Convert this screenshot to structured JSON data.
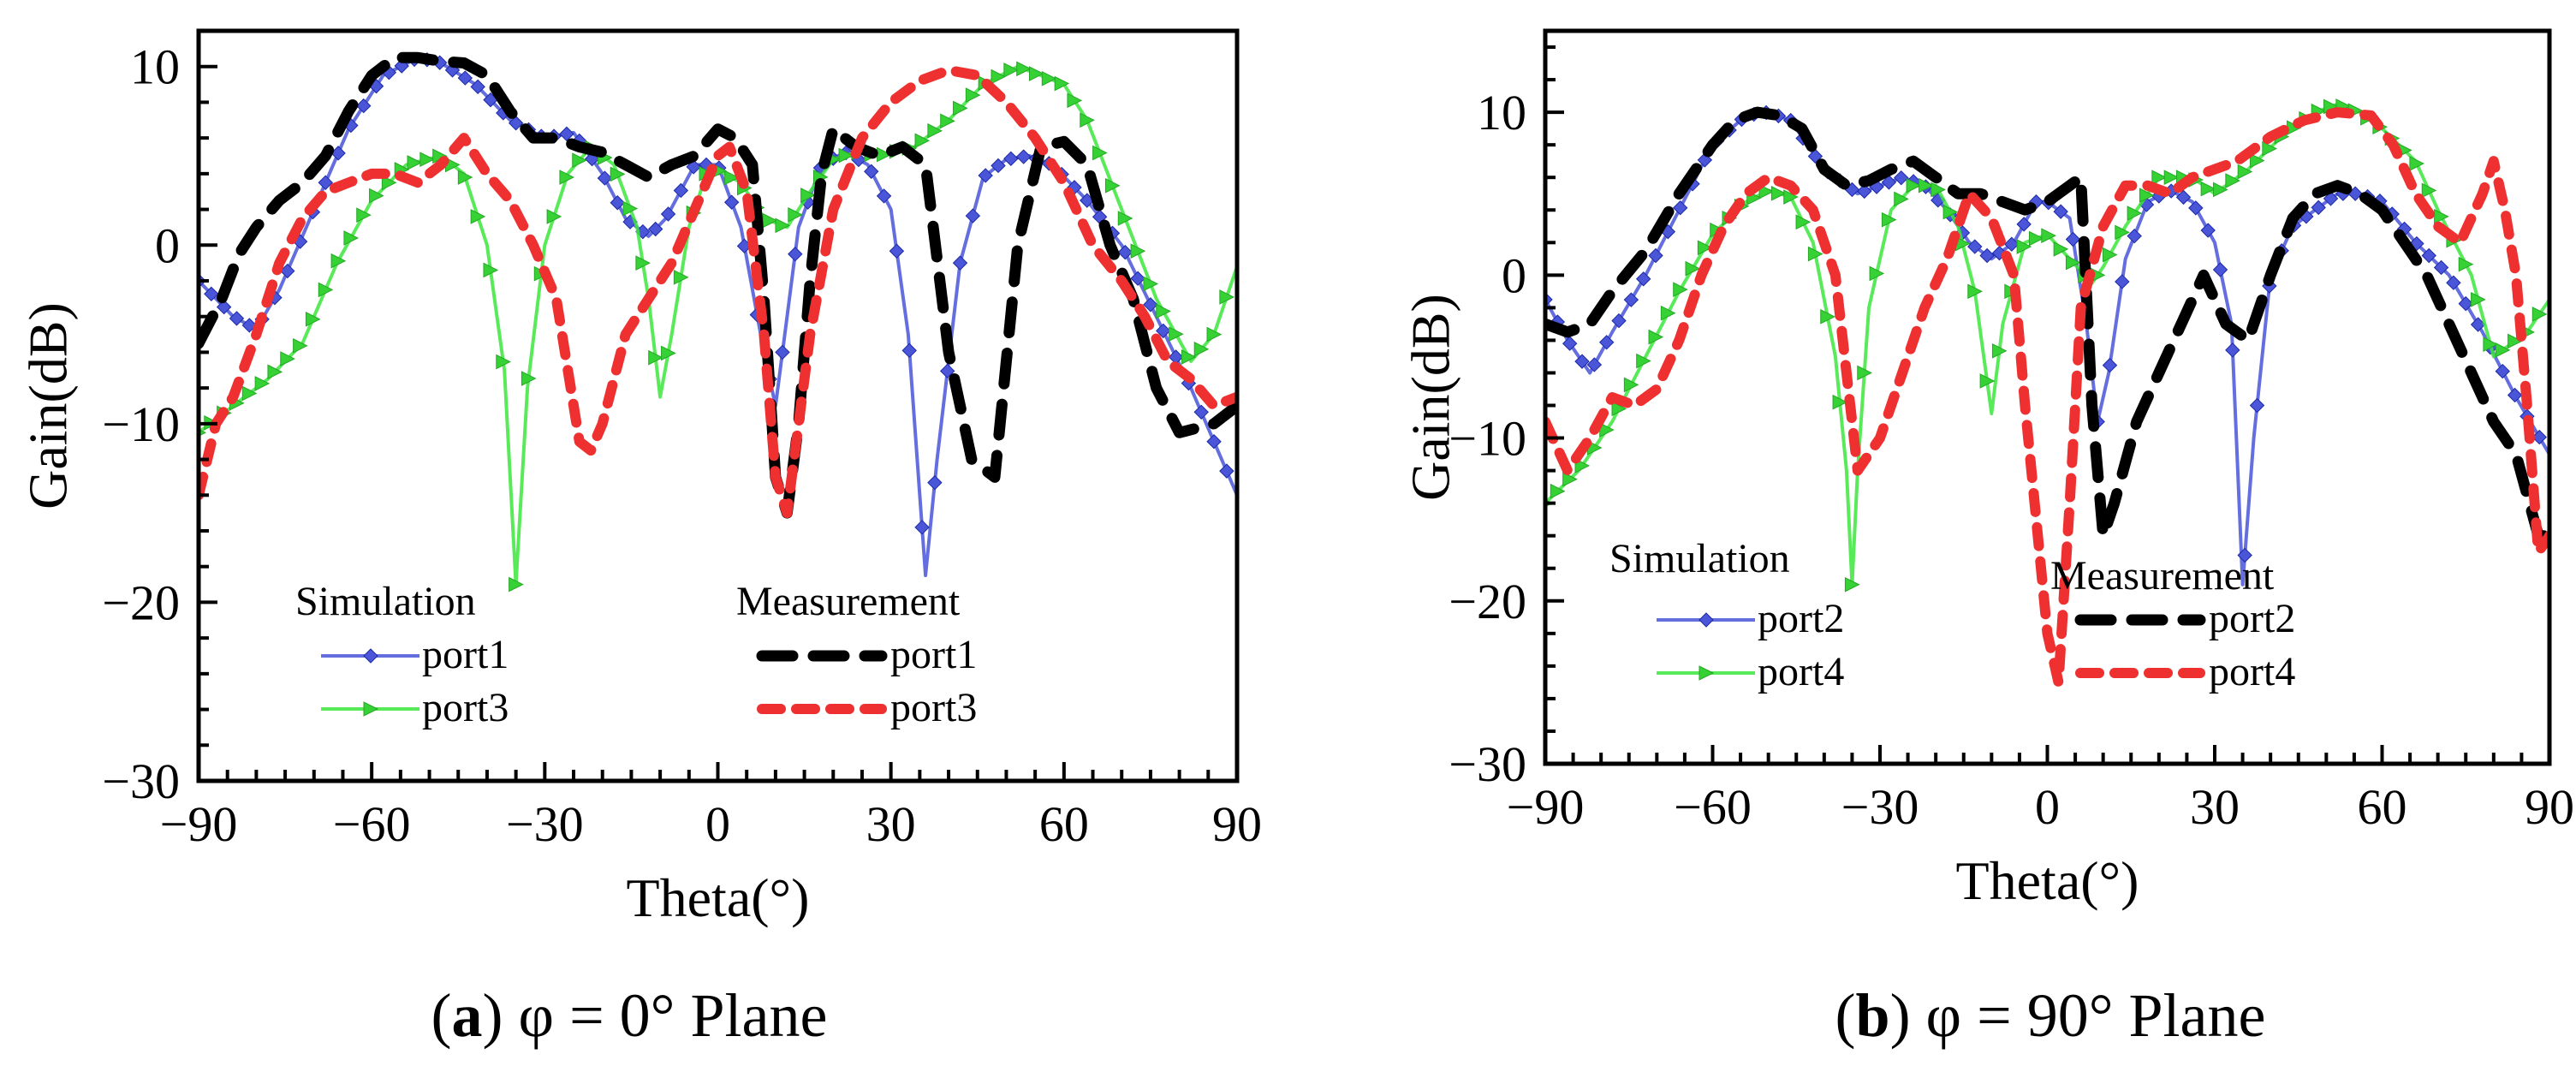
{
  "chart_data": [
    {
      "id": "a",
      "type": "line",
      "caption_letter": "a",
      "caption_rest": "φ = 0° Plane",
      "xlabel": "Theta(°)",
      "ylabel": "Gain(dB)",
      "xlim": [
        -90,
        90
      ],
      "ylim": [
        -30,
        12
      ],
      "xticks": [
        -90,
        -60,
        -30,
        0,
        30,
        60,
        90
      ],
      "xtick_labels": [
        "−90",
        "−60",
        "−30",
        "0",
        "30",
        "60",
        "90"
      ],
      "yticks": [
        10,
        0,
        -10,
        -20,
        -30
      ],
      "ytick_labels": [
        "10",
        "0",
        "−10",
        "−20",
        "−30"
      ],
      "legend": {
        "sim_title": "Simulation",
        "meas_title": "Measurement",
        "sim_items": [
          "port1",
          "port3"
        ],
        "meas_items": [
          "port1",
          "port3"
        ]
      },
      "series": [
        {
          "name": "Simulation port1",
          "color": "#4a55d8",
          "style": "sim-diamond",
          "x": [
            -90,
            -84,
            -80,
            -76,
            -70,
            -64,
            -58,
            -52,
            -48,
            -42,
            -36,
            -30,
            -25,
            -20,
            -16,
            -12,
            -9,
            -4,
            0,
            4,
            8,
            10,
            12,
            14,
            18,
            22,
            26,
            30,
            33,
            36,
            38,
            42,
            46,
            50,
            54,
            58,
            64,
            70,
            76,
            82,
            86,
            90
          ],
          "y": [
            -2,
            -4,
            -4.7,
            -2.5,
            2,
            6.5,
            9.5,
            10.5,
            10.2,
            9,
            7,
            6,
            6.3,
            4,
            1.5,
            0.5,
            1.5,
            4.5,
            4.5,
            1,
            -6,
            -9,
            -4,
            1,
            4.5,
            5.2,
            4.5,
            2,
            -5,
            -18.5,
            -12,
            -1,
            3.8,
            4.8,
            5,
            4.5,
            2.5,
            0,
            -4,
            -8,
            -11,
            -14
          ]
        },
        {
          "name": "Simulation port3",
          "color": "#3ce63c",
          "style": "sim-triangle",
          "x": [
            -90,
            -84,
            -78,
            -72,
            -66,
            -60,
            -54,
            -48,
            -44,
            -40,
            -37,
            -35,
            -33,
            -30,
            -26,
            -22,
            -18,
            -14,
            -12,
            -10,
            -8,
            -5,
            -2,
            0,
            4,
            8,
            12,
            16,
            20,
            24,
            28,
            34,
            40,
            46,
            52,
            56,
            60,
            64,
            70,
            76,
            82,
            86,
            90
          ],
          "y": [
            -10.5,
            -9,
            -7.5,
            -5.5,
            -1,
            2.5,
            4.5,
            5,
            4,
            0,
            -7,
            -19,
            -8,
            0,
            4,
            5.5,
            4.5,
            1,
            -3,
            -8.5,
            -5,
            1,
            4,
            4.2,
            3.5,
            1.5,
            1,
            3,
            4.8,
            5.2,
            5,
            5.5,
            7,
            9,
            10,
            9.5,
            9,
            7,
            2,
            -3,
            -6.5,
            -5,
            -1.2
          ]
        },
        {
          "name": "Measurement port1",
          "color": "#000000",
          "style": "meas-black",
          "x": [
            -90,
            -86,
            -83,
            -80,
            -76,
            -72,
            -68,
            -64,
            -60,
            -56,
            -52,
            -48,
            -44,
            -40,
            -36,
            -32,
            -28,
            -24,
            -20,
            -16,
            -12,
            -8,
            -4,
            0,
            3,
            6,
            8,
            10,
            12,
            14,
            16,
            18,
            20,
            24,
            28,
            32,
            36,
            40,
            44,
            48,
            52,
            56,
            60,
            64,
            68,
            72,
            76,
            80,
            86,
            90
          ],
          "y": [
            -5.5,
            -3,
            -0.5,
            1,
            2.5,
            3.5,
            5,
            7.5,
            9.5,
            10.5,
            10.5,
            10.3,
            10.2,
            9.5,
            7.5,
            6,
            6,
            5.5,
            5.2,
            4.5,
            3.8,
            4.5,
            5,
            6.5,
            6,
            4.5,
            -3,
            -13,
            -15,
            -10,
            -2,
            4,
            6.5,
            5.5,
            5,
            5.5,
            4.5,
            -6,
            -12,
            -13,
            0,
            5.5,
            5.8,
            4.5,
            0,
            -3,
            -8,
            -10.5,
            -10,
            -9
          ]
        },
        {
          "name": "Measurement port3",
          "color": "#ee3030",
          "style": "meas-red",
          "x": [
            -90,
            -87,
            -84,
            -80,
            -76,
            -72,
            -68,
            -64,
            -60,
            -56,
            -52,
            -48,
            -44,
            -40,
            -36,
            -32,
            -28,
            -24,
            -22,
            -20,
            -16,
            -12,
            -8,
            -4,
            0,
            2,
            5,
            8,
            10,
            12,
            16,
            20,
            25,
            30,
            35,
            40,
            45,
            50,
            55,
            60,
            65,
            70,
            74,
            78,
            82,
            86,
            90
          ],
          "y": [
            -14,
            -10,
            -8.5,
            -5,
            -1,
            1.5,
            3,
            3.5,
            4,
            4,
            3.5,
            4.5,
            6,
            4,
            2.5,
            0,
            -3,
            -11,
            -11.5,
            -10,
            -5,
            -3,
            -1,
            2,
            5,
            5.5,
            3,
            -5,
            -13,
            -15,
            -5,
            2,
            6,
            8,
            9.2,
            9.8,
            9.5,
            8,
            6,
            3.5,
            0,
            -2,
            -4,
            -6.5,
            -7.5,
            -9,
            -8.5
          ]
        }
      ]
    },
    {
      "id": "b",
      "type": "line",
      "caption_letter": "b",
      "caption_rest": "φ = 90° Plane",
      "xlabel": "Theta(°)",
      "ylabel": "Gain(dB)",
      "xlim": [
        -90,
        90
      ],
      "ylim": [
        -30,
        15
      ],
      "xticks": [
        -90,
        -60,
        -30,
        0,
        30,
        60,
        90
      ],
      "xtick_labels": [
        "−90",
        "−60",
        "−30",
        "0",
        "30",
        "60",
        "90"
      ],
      "yticks": [
        10,
        0,
        -10,
        -20,
        -30
      ],
      "ytick_labels": [
        "10",
        "0",
        "−10",
        "−20",
        "−30"
      ],
      "legend": {
        "sim_title": "Simulation",
        "meas_title": "Measurement",
        "sim_items": [
          "port2",
          "port4"
        ],
        "meas_items": [
          "port2",
          "port4"
        ]
      },
      "series": [
        {
          "name": "Simulation port2",
          "color": "#4a55d8",
          "style": "sim-diamond",
          "x": [
            -90,
            -86,
            -82,
            -78,
            -72,
            -66,
            -60,
            -54,
            -50,
            -46,
            -40,
            -34,
            -30,
            -26,
            -22,
            -18,
            -14,
            -10,
            -6,
            -2,
            0,
            4,
            7,
            9,
            11,
            14,
            18,
            22,
            26,
            30,
            33,
            35,
            37,
            40,
            44,
            48,
            52,
            56,
            60,
            66,
            72,
            78,
            84,
            90
          ],
          "y": [
            -1.5,
            -4,
            -6,
            -3.5,
            0,
            4,
            8,
            9.8,
            10,
            9.5,
            6.5,
            5,
            5.5,
            6,
            5.5,
            4,
            2,
            1,
            2,
            4.5,
            4.5,
            3.5,
            -3,
            -9,
            -6,
            1,
            4.5,
            5.2,
            4.5,
            2,
            -3,
            -19,
            -10,
            0,
            3,
            4,
            5,
            5,
            4.5,
            2,
            0,
            -3.5,
            -7.5,
            -11
          ]
        },
        {
          "name": "Simulation port4",
          "color": "#3ce63c",
          "style": "sim-triangle",
          "x": [
            -90,
            -84,
            -78,
            -72,
            -66,
            -60,
            -54,
            -50,
            -46,
            -42,
            -38,
            -36,
            -35,
            -34,
            -32,
            -28,
            -24,
            -20,
            -16,
            -13,
            -11,
            -10,
            -8,
            -4,
            0,
            4,
            8,
            10,
            14,
            20,
            26,
            30,
            36,
            42,
            48,
            52,
            56,
            60,
            66,
            70,
            76,
            80,
            86,
            90
          ],
          "y": [
            -14,
            -12,
            -9,
            -5,
            -1,
            2.5,
            4.5,
            5.2,
            4.8,
            2,
            -5,
            -12,
            -19,
            -12,
            -2,
            4,
            5.5,
            5.5,
            3,
            -1,
            -6,
            -8.5,
            -3,
            2,
            2.5,
            1,
            -0.5,
            0.5,
            3,
            6,
            6,
            5,
            6.5,
            8.5,
            10,
            10.5,
            10,
            9,
            7,
            4,
            0,
            -5,
            -3.5,
            -1.5
          ]
        },
        {
          "name": "Measurement port2",
          "color": "#000000",
          "style": "meas-black",
          "x": [
            -90,
            -86,
            -82,
            -78,
            -72,
            -66,
            -60,
            -56,
            -52,
            -48,
            -44,
            -40,
            -36,
            -32,
            -28,
            -24,
            -20,
            -16,
            -12,
            -8,
            -4,
            0,
            4,
            6,
            8,
            10,
            12,
            16,
            20,
            24,
            28,
            32,
            36,
            40,
            44,
            48,
            52,
            56,
            60,
            64,
            68,
            72,
            76,
            80,
            84,
            88,
            90
          ],
          "y": [
            -3,
            -3.5,
            -3,
            -1,
            1.5,
            5,
            8,
            9.5,
            10,
            9.8,
            9,
            6.5,
            5.5,
            5.8,
            6.5,
            7,
            6,
            5,
            5,
            4.5,
            4,
            4.5,
            5.5,
            6,
            -8,
            -16,
            -14,
            -9,
            -6,
            -3,
            0,
            -3,
            -4,
            0,
            3.5,
            5,
            5.5,
            5,
            4,
            2,
            0,
            -3,
            -6,
            -9,
            -11,
            -16,
            -16
          ]
        },
        {
          "name": "Measurement port4",
          "color": "#ee3030",
          "style": "meas-red",
          "x": [
            -90,
            -86,
            -82,
            -78,
            -74,
            -70,
            -66,
            -62,
            -58,
            -54,
            -50,
            -46,
            -42,
            -38,
            -34,
            -30,
            -26,
            -22,
            -18,
            -14,
            -10,
            -6,
            -4,
            -2,
            0,
            2,
            4,
            6,
            10,
            14,
            18,
            22,
            26,
            30,
            34,
            40,
            46,
            52,
            58,
            62,
            66,
            70,
            74,
            78,
            80,
            82,
            84,
            86,
            88,
            90
          ],
          "y": [
            -9,
            -12,
            -10,
            -7.5,
            -8,
            -7,
            -4,
            0,
            3,
            5,
            6,
            5.5,
            4,
            0,
            -12,
            -10,
            -6,
            -2,
            1,
            5,
            3.5,
            0,
            -8,
            -15,
            -22,
            -25,
            -14,
            -2,
            3,
            5.5,
            5.5,
            5,
            6,
            6.5,
            7,
            8.5,
            9.5,
            10,
            9.8,
            8,
            5,
            3,
            2,
            5,
            7,
            4,
            0,
            -8,
            -17,
            -16
          ]
        }
      ]
    }
  ]
}
